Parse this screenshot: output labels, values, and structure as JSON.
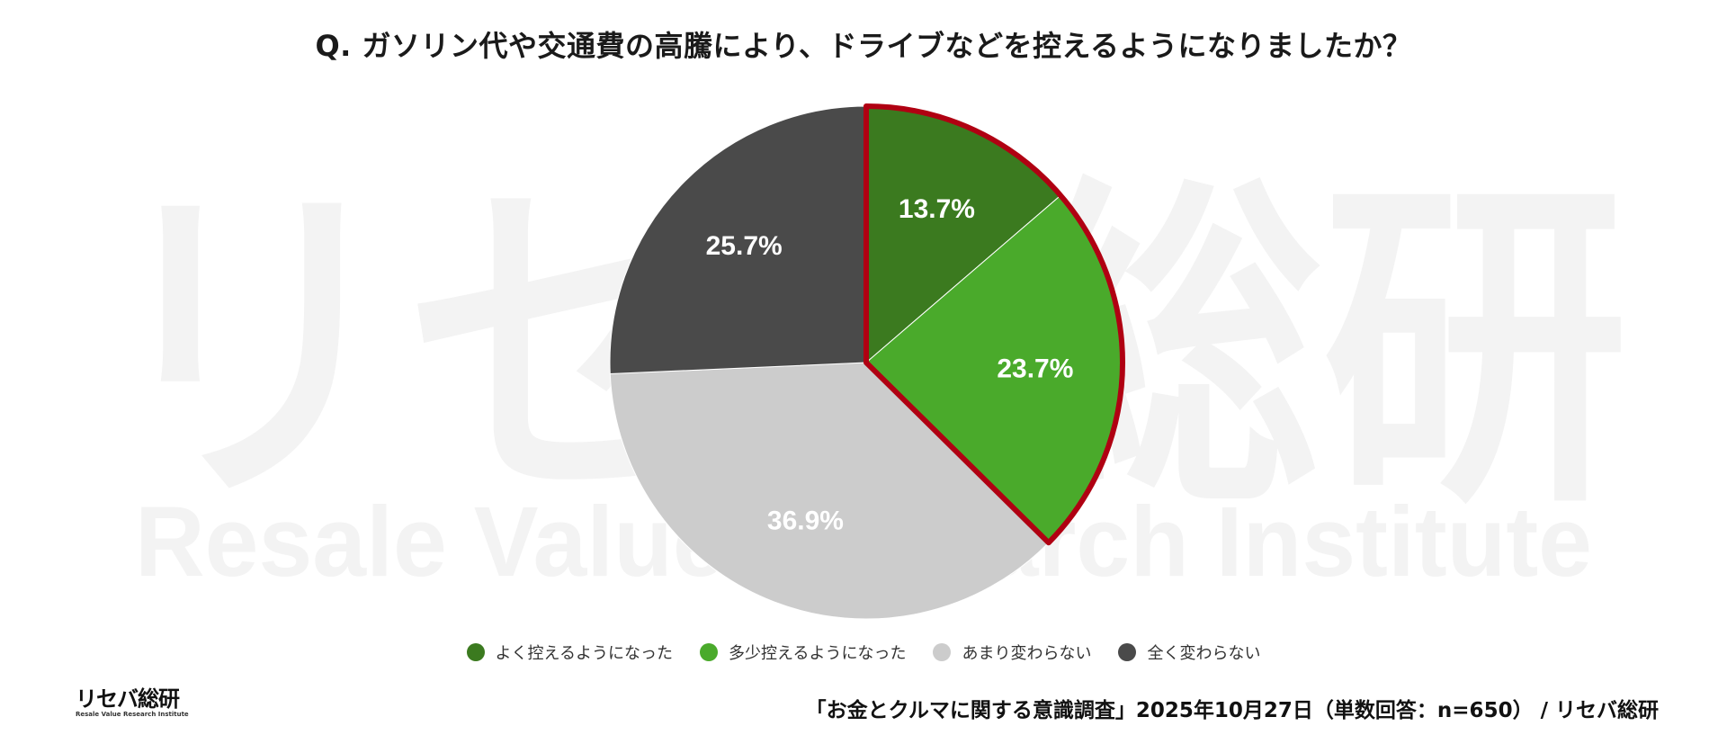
{
  "title": "Q. ガソリン代や交通費の高騰により、ドライブなどを控えるようになりましたか？",
  "chart_data": {
    "type": "pie",
    "title": "Q. ガソリン代や交通費の高騰により、ドライブなどを控えるようになりましたか？",
    "categories": [
      "よく控えるようになった",
      "多少控えるようになった",
      "あまり変わらない",
      "全く変わらない"
    ],
    "values": [
      13.7,
      23.7,
      36.9,
      25.7
    ],
    "labels": [
      "13.7%",
      "23.7%",
      "36.9%",
      "25.7%"
    ],
    "colors": [
      "#3b7a1f",
      "#4aaa2b",
      "#cccccc",
      "#4a4a4a"
    ],
    "highlight": {
      "categories": [
        "よく控えるようになった",
        "多少控えるようになった"
      ],
      "outline_color": "#b00012"
    },
    "start": "12 o'clock",
    "direction": "clockwise",
    "legend_position": "bottom"
  },
  "watermark": {
    "main": "リセバ総研",
    "sub": "Resale Value Research Institute"
  },
  "logo": {
    "main": "リセバ総研",
    "sub": "Resale Value Research Institute"
  },
  "source": "「お金とクルマに関する意識調査」2025年10月27日（単数回答：n=650） / リセバ総研"
}
